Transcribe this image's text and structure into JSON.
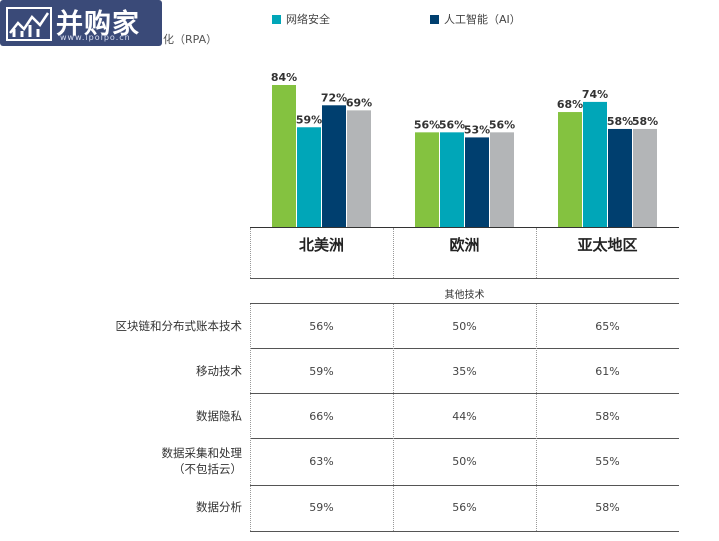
{
  "logo": {
    "text": "并购家",
    "url": "www.ipoipo.cn"
  },
  "legend": [
    {
      "name": "网络安全",
      "color": "#00a6b8"
    },
    {
      "name": "人工智能（AI）",
      "color": "#003f6f"
    }
  ],
  "partial_label": "化（RPA）",
  "colors": {
    "green": "#84c240",
    "teal": "#00a6b8",
    "navy": "#003f6f",
    "gray": "#b3b5b7"
  },
  "chart_data": {
    "type": "bar",
    "categories": [
      "北美洲",
      "欧洲",
      "亚太地区"
    ],
    "series": [
      {
        "values": [
          84,
          56,
          68
        ],
        "labels": [
          "84%",
          "56%",
          "68%"
        ],
        "color": "#84c240"
      },
      {
        "name": "网络安全",
        "values": [
          59,
          56,
          74
        ],
        "labels": [
          "59%",
          "56%",
          "74%"
        ],
        "color": "#00a6b8"
      },
      {
        "name": "人工智能（AI）",
        "values": [
          72,
          53,
          58
        ],
        "labels": [
          "72%",
          "53%",
          "58%"
        ],
        "color": "#003f6f"
      },
      {
        "values": [
          69,
          56,
          58
        ],
        "labels": [
          "69%",
          "56%",
          "58%"
        ],
        "color": "#b3b5b7"
      }
    ],
    "ylim": [
      0,
      100
    ]
  },
  "table": {
    "section_title": "其他技术",
    "rows": [
      {
        "label": "区块链和分布式账本技术",
        "values": [
          "56%",
          "50%",
          "65%"
        ]
      },
      {
        "label": "移动技术",
        "values": [
          "59%",
          "35%",
          "61%"
        ]
      },
      {
        "label": "数据隐私",
        "values": [
          "66%",
          "44%",
          "58%"
        ]
      },
      {
        "label": "数据采集和处理\n（不包括云）",
        "values": [
          "63%",
          "50%",
          "55%"
        ]
      },
      {
        "label": "数据分析",
        "values": [
          "59%",
          "56%",
          "58%"
        ]
      }
    ]
  }
}
